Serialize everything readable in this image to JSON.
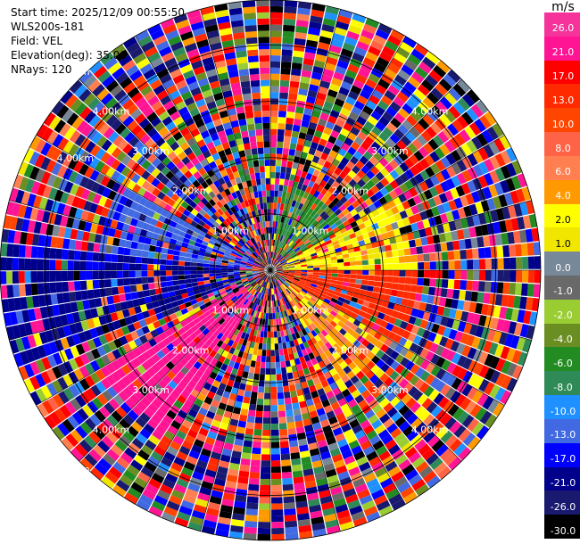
{
  "header": {
    "start_time": "Start time: 2025/12/09 00:55:50",
    "instrument": "WLS200s-181",
    "field": "Field: VEL",
    "elevation": "Elevation(deg): 35.00",
    "nrays": "NRays: 120"
  },
  "colorbar": {
    "unit": "m/s",
    "levels": [
      {
        "label": "26.0",
        "color": "#f5339a"
      },
      {
        "label": "21.0",
        "color": "#ff1493"
      },
      {
        "label": "17.0",
        "color": "#ff0000"
      },
      {
        "label": "13.0",
        "color": "#ff2a00"
      },
      {
        "label": "10.0",
        "color": "#ff4500"
      },
      {
        "label": "8.0",
        "color": "#ff6347"
      },
      {
        "label": "6.0",
        "color": "#ff7f50"
      },
      {
        "label": "4.0",
        "color": "#ff9900"
      },
      {
        "label": "2.0",
        "color": "#ffff00"
      },
      {
        "label": "1.0",
        "color": "#f0e600"
      },
      {
        "label": "0.0",
        "color": "#778899"
      },
      {
        "label": "-1.0",
        "color": "#696969"
      },
      {
        "label": "-2.0",
        "color": "#9acd32"
      },
      {
        "label": "-4.0",
        "color": "#6b8e23"
      },
      {
        "label": "-6.0",
        "color": "#228b22"
      },
      {
        "label": "-8.0",
        "color": "#2e8b57"
      },
      {
        "label": "-10.0",
        "color": "#1e90ff"
      },
      {
        "label": "-13.0",
        "color": "#4169e1"
      },
      {
        "label": "-17.0",
        "color": "#0000ff"
      },
      {
        "label": "-21.0",
        "color": "#00008b"
      },
      {
        "label": "-26.0",
        "color": "#191970"
      },
      {
        "label": "-30.0",
        "color": "#000000"
      }
    ]
  },
  "chart_data": {
    "type": "heatmap",
    "projection": "polar-ppi",
    "field": "VEL",
    "units": "m/s",
    "n_rays": 120,
    "azimuth_step_deg": 3,
    "max_range_km": 4.8,
    "vmin": -30.0,
    "vmax": 26.0,
    "range_rings": [
      {
        "range_km": 1.0,
        "label": "1.00km"
      },
      {
        "range_km": 2.0,
        "label": "2.00km"
      },
      {
        "range_km": 3.0,
        "label": "3.00km"
      },
      {
        "range_km": 4.0,
        "label": "4.00km"
      }
    ],
    "ring_label_azimuths_deg": [
      45,
      135,
      225,
      315
    ],
    "ring_label_extra": [
      {
        "range_km": 4.0,
        "azimuth_deg": 300,
        "label": "4.00km"
      },
      {
        "range_km": 5.0,
        "azimuth_deg": 315,
        "label": "5.00km"
      },
      {
        "range_km": 5.0,
        "azimuth_deg": 225,
        "label": "5.00km"
      }
    ],
    "sectors": [
      {
        "az_from": 60,
        "az_to": 90,
        "r_from_km": 0.2,
        "r_to_km": 2.6,
        "value": 3.0
      },
      {
        "az_from": 90,
        "az_to": 120,
        "r_from_km": 0.2,
        "r_to_km": 2.6,
        "value": 15.0
      },
      {
        "az_from": 120,
        "az_to": 150,
        "r_from_km": 0.3,
        "r_to_km": 2.4,
        "value": 5.0
      },
      {
        "az_from": 210,
        "az_to": 240,
        "r_from_km": 0.5,
        "r_to_km": 3.4,
        "value": 24.0
      },
      {
        "az_from": 250,
        "az_to": 275,
        "r_from_km": 0.5,
        "r_to_km": 4.8,
        "value": -18.0
      },
      {
        "az_from": 275,
        "az_to": 300,
        "r_from_km": 0.3,
        "r_to_km": 3.0,
        "value": -12.0
      },
      {
        "az_from": 10,
        "az_to": 60,
        "r_from_km": 0.3,
        "r_to_km": 1.5,
        "value": -5.0
      }
    ]
  }
}
